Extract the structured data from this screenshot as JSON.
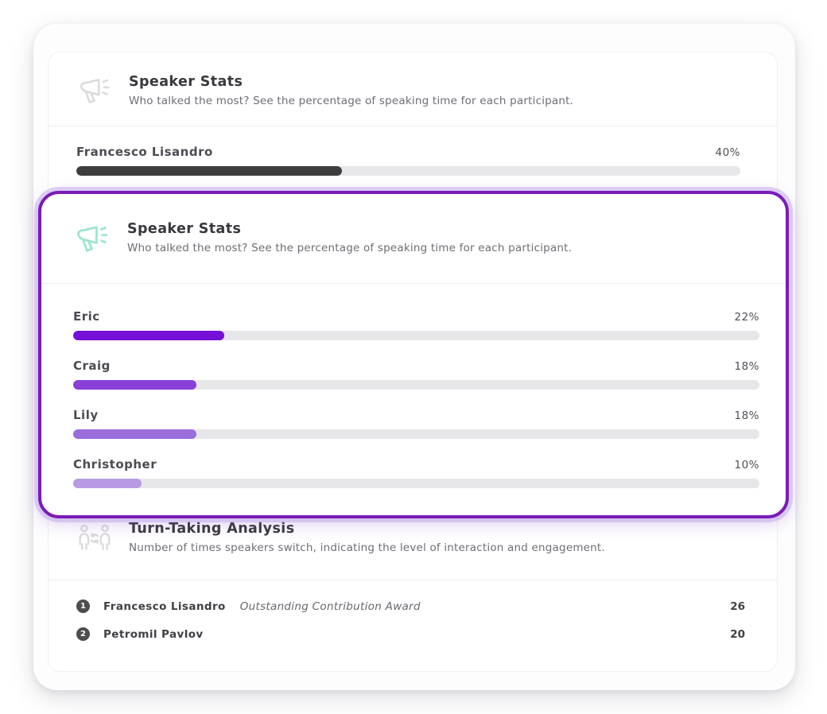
{
  "background_card": {
    "title": "Speaker Stats",
    "description": "Who talked the most? See the percentage of speaking time for each participant.",
    "icon": "megaphone-icon",
    "speaker": {
      "name": "Francesco Lisandro",
      "value": 40,
      "value_label": "40%",
      "bar_color": "#3d3d3d"
    }
  },
  "highlighted_card": {
    "title": "Speaker Stats",
    "description": "Who talked the most? See the percentage of speaking time for each participant.",
    "icon": "megaphone-icon",
    "accent_border_color": "#7a1cb8",
    "speakers": [
      {
        "name": "Eric",
        "value": 22,
        "value_label": "22%",
        "bar_color": "#7511d6"
      },
      {
        "name": "Craig",
        "value": 18,
        "value_label": "18%",
        "bar_color": "#8b3fd9"
      },
      {
        "name": "Lily",
        "value": 18,
        "value_label": "18%",
        "bar_color": "#9a6edb"
      },
      {
        "name": "Christopher",
        "value": 10,
        "value_label": "10%",
        "bar_color": "#b79ae3"
      }
    ]
  },
  "turn_taking_card": {
    "title": "Turn-Taking Analysis",
    "description": "Number of times speakers switch, indicating the level of interaction and engagement.",
    "icon": "people-swap-icon",
    "rows": [
      {
        "rank": "1",
        "name": "Francesco Lisandro",
        "award": "Outstanding Contribution Award",
        "count": "26"
      },
      {
        "rank": "2",
        "name": "Petromil Pavlov",
        "award": "",
        "count": "20"
      }
    ]
  }
}
